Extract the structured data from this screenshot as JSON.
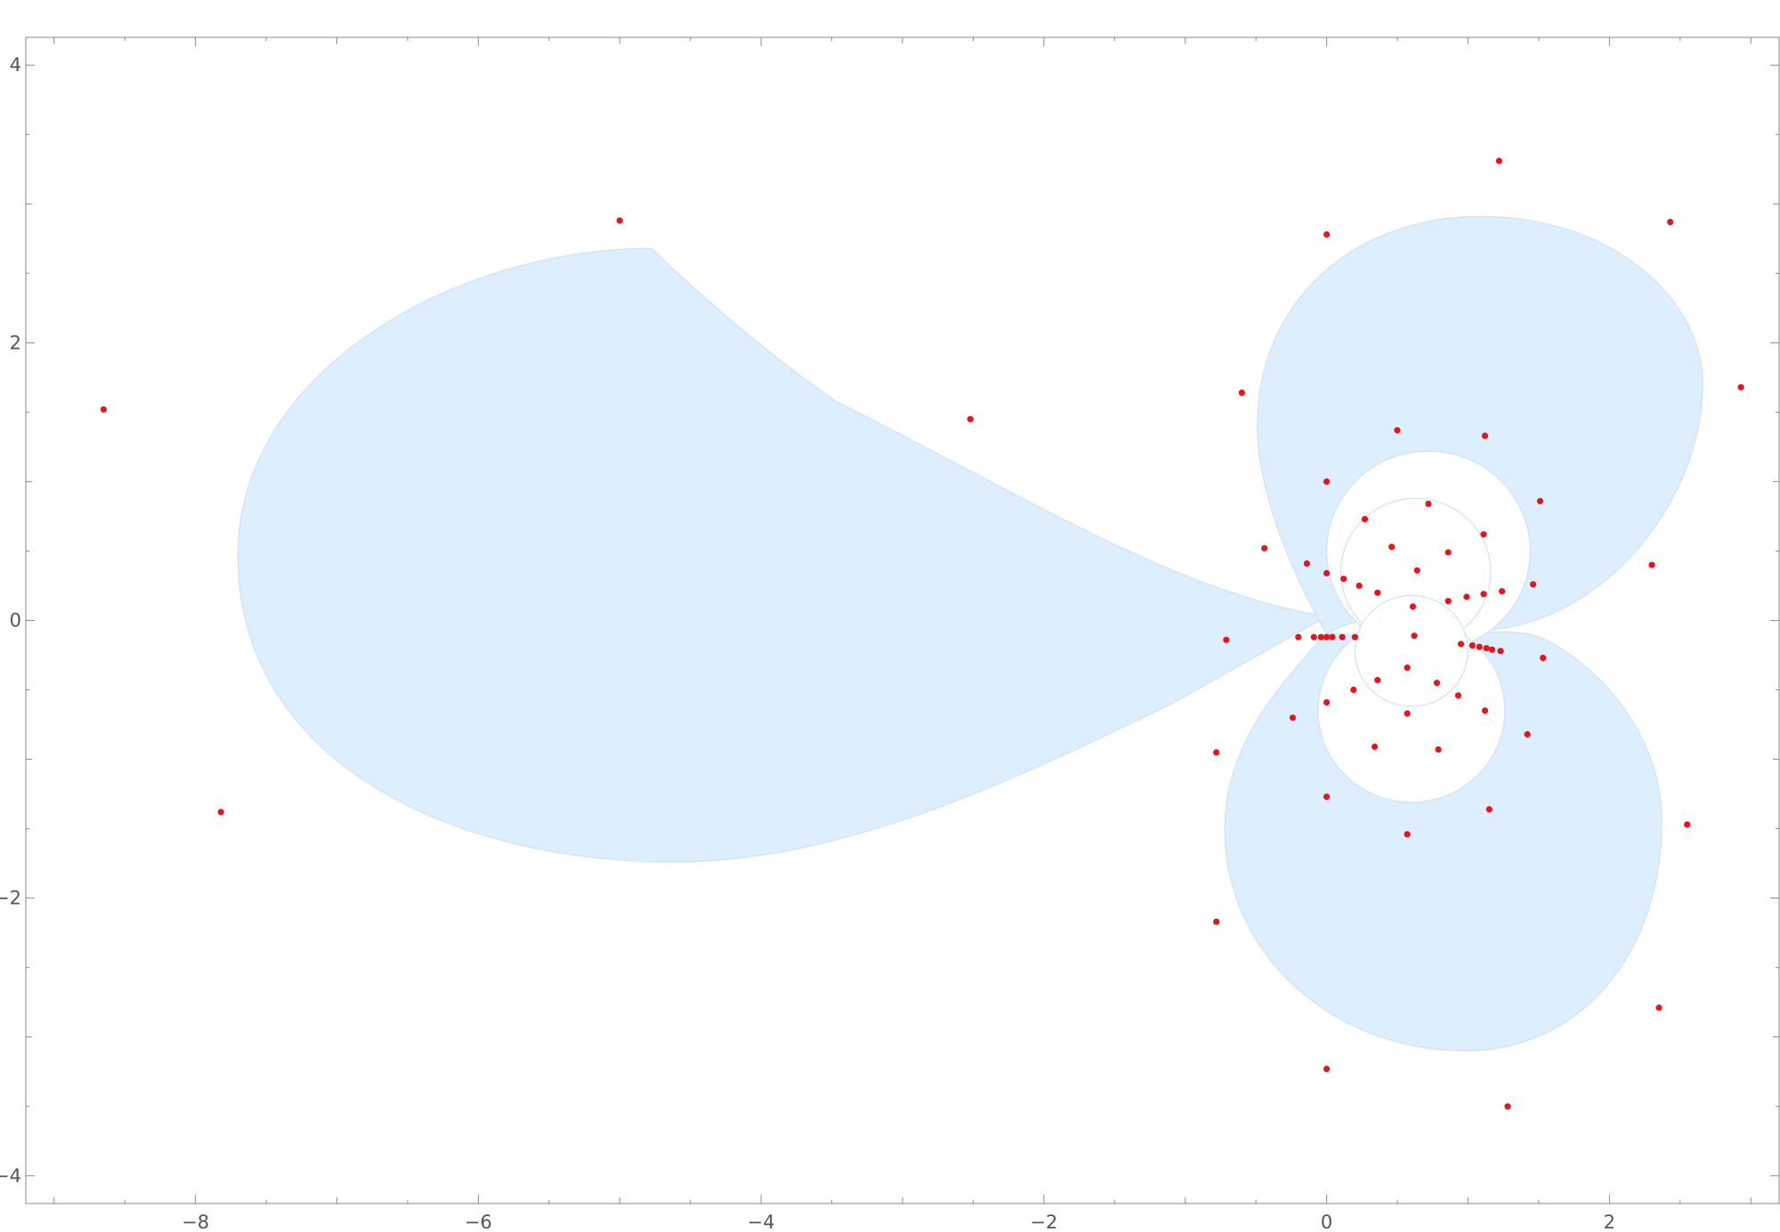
{
  "colors": {
    "region_fill": "#ddeefc",
    "point_color": "#e8141c",
    "axis_color": "#8a8a8a",
    "label_color": "#555555"
  },
  "chart_data": {
    "type": "scatter",
    "title": "",
    "xlabel": "",
    "ylabel": "",
    "xlim": [
      -9.2,
      3.2
    ],
    "ylim": [
      -4.2,
      4.2
    ],
    "x_ticks": [
      -8,
      -6,
      -4,
      -2,
      0,
      2
    ],
    "x_tick_labels": [
      "−8",
      "−6",
      "−4",
      "−2",
      "0",
      "2"
    ],
    "y_ticks": [
      -4,
      -2,
      0,
      2,
      4
    ],
    "y_tick_labels": [
      "−4",
      "−2",
      "0",
      "2",
      "4"
    ],
    "grid": false,
    "regions": [
      {
        "shape": "left-lobe",
        "bounds": {
          "xmin": -7.7,
          "xmax": 0.0,
          "ymin": -1.74,
          "ymax": 2.68
        }
      },
      {
        "shape": "upper-right-lobe",
        "bounds": {
          "xmin": -0.49,
          "xmax": 2.66,
          "ymin": -0.1,
          "ymax": 2.91
        }
      },
      {
        "shape": "lower-right-lobe",
        "bounds": {
          "xmin": -0.72,
          "xmax": 2.37,
          "ymin": -3.1,
          "ymax": -0.1
        }
      },
      {
        "shape": "circle-ring",
        "center": [
          0.72,
          0.5
        ],
        "radius": 0.72
      },
      {
        "shape": "circle-ring",
        "center": [
          0.6,
          -0.65
        ],
        "radius": 0.66
      },
      {
        "shape": "circle-ring",
        "center": [
          0.63,
          0.35
        ],
        "radius": 0.53
      },
      {
        "shape": "circle-ring",
        "center": [
          0.6,
          -0.22
        ],
        "radius": 0.4
      }
    ],
    "points": [
      {
        "x": -8.65,
        "y": 1.52
      },
      {
        "x": -7.82,
        "y": -1.38
      },
      {
        "x": -5.0,
        "y": 2.88
      },
      {
        "x": -2.52,
        "y": 1.45
      },
      {
        "x": 0.0,
        "y": 2.78
      },
      {
        "x": 1.22,
        "y": 3.31
      },
      {
        "x": 2.43,
        "y": 2.87
      },
      {
        "x": 2.93,
        "y": 1.68
      },
      {
        "x": -0.6,
        "y": 1.64
      },
      {
        "x": 0.5,
        "y": 1.37
      },
      {
        "x": 1.12,
        "y": 1.33
      },
      {
        "x": 0.0,
        "y": 1.0
      },
      {
        "x": 1.51,
        "y": 0.86
      },
      {
        "x": 0.72,
        "y": 0.84
      },
      {
        "x": 0.27,
        "y": 0.73
      },
      {
        "x": 1.11,
        "y": 0.62
      },
      {
        "x": -0.44,
        "y": 0.52
      },
      {
        "x": 0.46,
        "y": 0.53
      },
      {
        "x": 0.86,
        "y": 0.49
      },
      {
        "x": -0.14,
        "y": 0.41
      },
      {
        "x": 2.3,
        "y": 0.4
      },
      {
        "x": 0.64,
        "y": 0.36
      },
      {
        "x": 0.0,
        "y": 0.34
      },
      {
        "x": 0.12,
        "y": 0.3
      },
      {
        "x": 0.23,
        "y": 0.25
      },
      {
        "x": 1.46,
        "y": 0.26
      },
      {
        "x": 1.24,
        "y": 0.21
      },
      {
        "x": 1.11,
        "y": 0.19
      },
      {
        "x": 0.36,
        "y": 0.2
      },
      {
        "x": 0.99,
        "y": 0.17
      },
      {
        "x": 0.86,
        "y": 0.14
      },
      {
        "x": 0.61,
        "y": 0.1
      },
      {
        "x": -0.71,
        "y": -0.14
      },
      {
        "x": -0.2,
        "y": -0.12
      },
      {
        "x": -0.09,
        "y": -0.12
      },
      {
        "x": -0.04,
        "y": -0.12
      },
      {
        "x": 0.0,
        "y": -0.12
      },
      {
        "x": 0.04,
        "y": -0.12
      },
      {
        "x": 0.11,
        "y": -0.12
      },
      {
        "x": 0.2,
        "y": -0.12
      },
      {
        "x": 0.62,
        "y": -0.11
      },
      {
        "x": 0.95,
        "y": -0.17
      },
      {
        "x": 1.03,
        "y": -0.18
      },
      {
        "x": 1.08,
        "y": -0.19
      },
      {
        "x": 1.13,
        "y": -0.2
      },
      {
        "x": 1.17,
        "y": -0.21
      },
      {
        "x": 1.23,
        "y": -0.22
      },
      {
        "x": 1.53,
        "y": -0.27
      },
      {
        "x": 0.57,
        "y": -0.34
      },
      {
        "x": 0.36,
        "y": -0.43
      },
      {
        "x": 0.78,
        "y": -0.45
      },
      {
        "x": 0.19,
        "y": -0.5
      },
      {
        "x": 0.93,
        "y": -0.54
      },
      {
        "x": 0.0,
        "y": -0.59
      },
      {
        "x": 1.12,
        "y": -0.65
      },
      {
        "x": 0.57,
        "y": -0.67
      },
      {
        "x": -0.24,
        "y": -0.7
      },
      {
        "x": 1.42,
        "y": -0.82
      },
      {
        "x": 0.34,
        "y": -0.91
      },
      {
        "x": 0.79,
        "y": -0.93
      },
      {
        "x": -0.78,
        "y": -0.95
      },
      {
        "x": 0.0,
        "y": -1.27
      },
      {
        "x": 1.15,
        "y": -1.36
      },
      {
        "x": 2.55,
        "y": -1.47
      },
      {
        "x": 0.57,
        "y": -1.54
      },
      {
        "x": -0.78,
        "y": -2.17
      },
      {
        "x": 2.35,
        "y": -2.79
      },
      {
        "x": 0.0,
        "y": -3.23
      },
      {
        "x": 1.28,
        "y": -3.5
      }
    ]
  }
}
